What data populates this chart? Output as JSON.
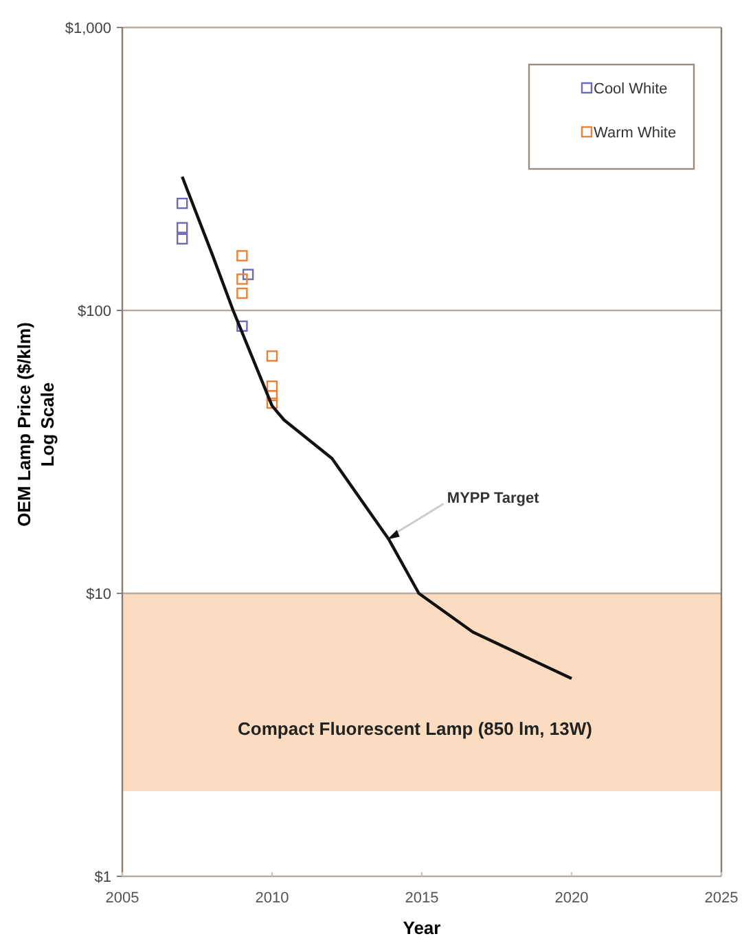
{
  "chart_data": {
    "type": "scatter",
    "xlabel": "Year",
    "ylabel": "OEM Lamp Price ($/klm)\nLog Scale",
    "log": "y",
    "xlim": [
      2005,
      2025
    ],
    "xticks": [
      2005,
      2010,
      2015,
      2020,
      2025
    ],
    "ylim": [
      1,
      1000
    ],
    "yticks": [
      {
        "value": 1,
        "label": "$1"
      },
      {
        "value": 10,
        "label": "$10"
      },
      {
        "value": 100,
        "label": "$100"
      },
      {
        "value": 1000,
        "label": "$1,000"
      }
    ],
    "grid": "y",
    "legend": "top right",
    "marker": "square",
    "series": [
      {
        "name": "Cool White",
        "color": "#6a6ab8",
        "x": [
          2007,
          2007,
          2007,
          2009.2,
          2009
        ],
        "values": [
          239,
          196,
          179,
          134,
          88
        ]
      },
      {
        "name": "Warm White",
        "color": "#e8803a",
        "x": [
          2009,
          2009,
          2009,
          2010,
          2010,
          2010,
          2010
        ],
        "values": [
          156,
          129,
          115,
          69,
          54,
          50,
          47
        ]
      },
      {
        "type": "line",
        "color": "#111111",
        "line_style": "solid",
        "marker": "none",
        "x": [
          2007,
          2008,
          2008.7,
          2010,
          2010.4,
          2012,
          2013.9,
          2014.9,
          2016.7,
          2020
        ],
        "values": [
          297,
          158,
          100,
          46,
          41,
          30,
          15.5,
          10,
          7.3,
          5
        ]
      }
    ],
    "bands": [
      {
        "axis": "y",
        "from": 2,
        "to": 10,
        "label": "Compact Fluorescent Lamp (850 lm, 13W)",
        "color": "#fbdcc0"
      }
    ],
    "annotations": [
      {
        "text": "MYPP Target",
        "x": 2013.8,
        "y": 15.5
      }
    ]
  }
}
